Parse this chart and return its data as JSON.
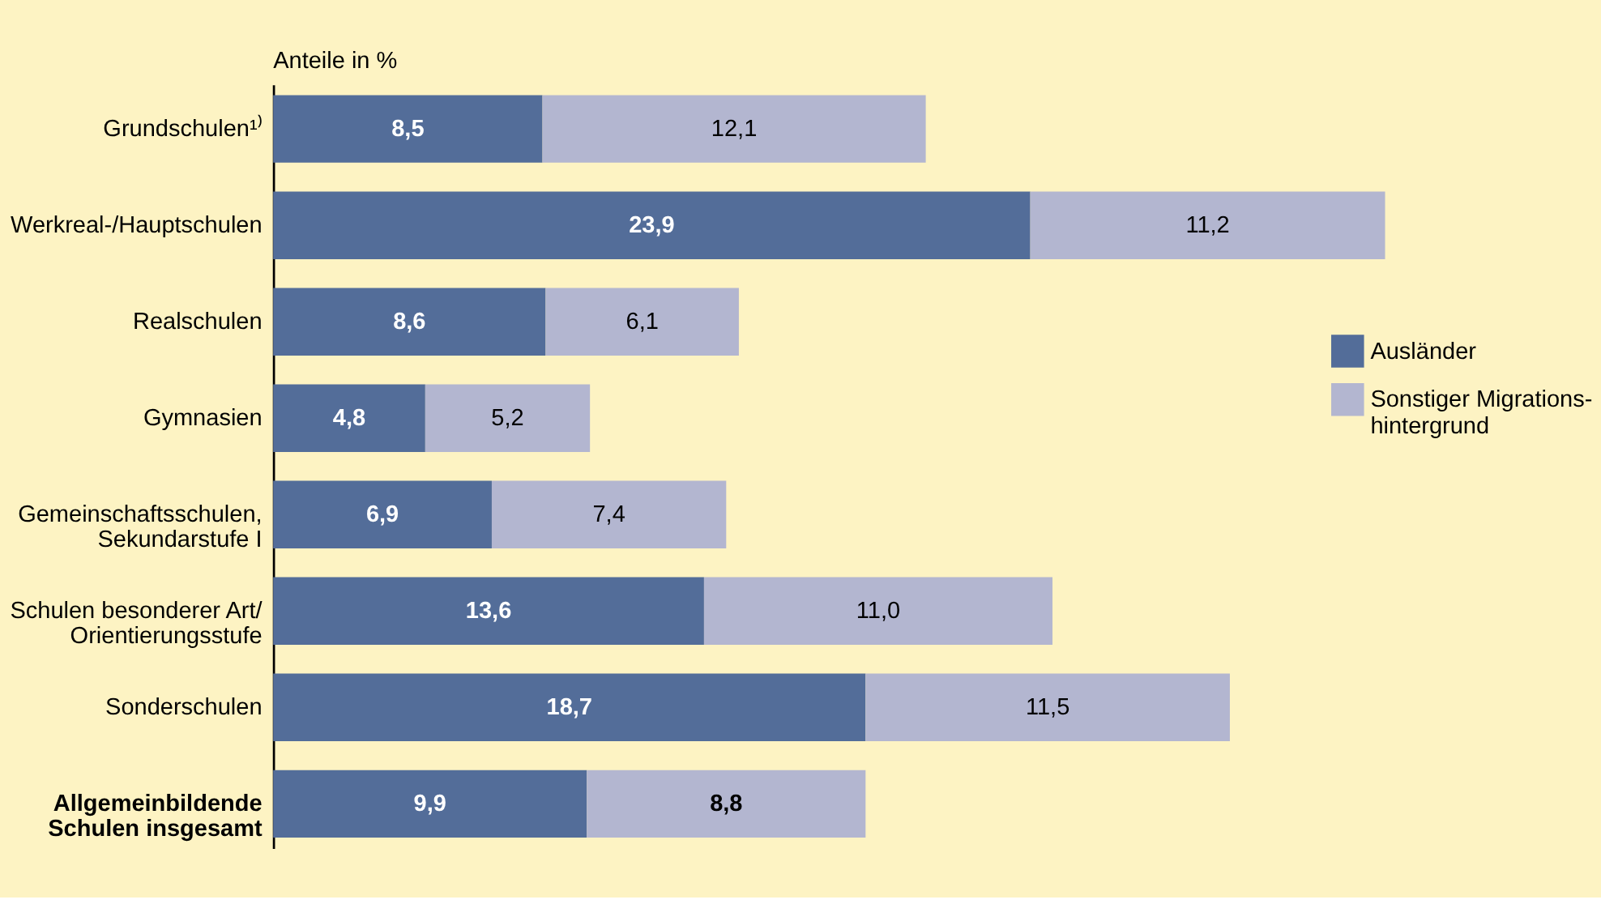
{
  "chart_data": {
    "type": "bar",
    "orientation": "horizontal",
    "stacked": true,
    "title": "Anteile in %",
    "categories": [
      "Grundschulen¹⁾",
      "Werkreal-/Hauptschulen",
      "Realschulen",
      "Gymnasien",
      "Gemeinschaftsschulen,\nSekundarstufe I",
      "Schulen besonderer Art/\nOrientierungsstufe",
      "Sonderschulen",
      "Allgemeinbildende\nSchulen insgesamt"
    ],
    "series": [
      {
        "name": "Ausländer",
        "color": "#536d99",
        "values": [
          8.5,
          23.9,
          8.6,
          4.8,
          6.9,
          13.6,
          18.7,
          9.9
        ],
        "value_labels": [
          "8,5",
          "23,9",
          "8,6",
          "4,8",
          "6,9",
          "13,6",
          "18,7",
          "9,9"
        ]
      },
      {
        "name": "Sonstiger Migrations-\nhintergrund",
        "color": "#b3b6d0",
        "values": [
          12.1,
          11.2,
          6.1,
          5.2,
          7.4,
          11.0,
          11.5,
          8.8
        ],
        "value_labels": [
          "12,1",
          "11,2",
          "6,1",
          "5,2",
          "7,4",
          "11,0",
          "11,5",
          "8,8"
        ]
      }
    ],
    "legend": "right",
    "tick_labels": "y"
  }
}
